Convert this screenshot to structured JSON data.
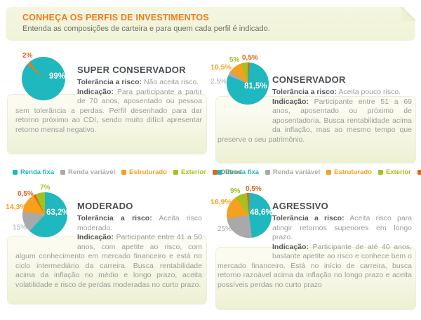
{
  "header": {
    "title": "CONHEÇA OS PERFIS DE INVESTIMENTOS",
    "subtitle": "Entenda as composições de carteira e para quem cada perfil é indicado."
  },
  "colors": {
    "renda_fixa": "#1EB8BE",
    "renda_variavel": "#A8A9AB",
    "estruturado": "#F5A01E",
    "exterior": "#A5C11E",
    "outros": "#E2651B",
    "header_title": "#F07B21"
  },
  "legend": {
    "items": [
      {
        "label": "Renda fixa",
        "color": "#1EB8BE"
      },
      {
        "label": "Renda variável",
        "color": "#A8A9AB"
      },
      {
        "label": "Estruturado",
        "color": "#F5A01E"
      },
      {
        "label": "Exterior",
        "color": "#A5C11E"
      },
      {
        "label": "Outros",
        "color": "#E2651B"
      }
    ]
  },
  "profiles": [
    {
      "name": "SUPER CONSERVADOR",
      "tolerance_label": "Tolerância a risco:",
      "tolerance": "Não aceita risco.",
      "indication_label": "Indicação:",
      "indication": "Para participante a partir de 70 anos, aposentado ou pessoa sem tolerância a perdas. Perfil desenhado para dar retorno próximo ao CDI, sendo muito difícil apresentar retorno mensal negativo."
    },
    {
      "name": "CONSERVADOR",
      "tolerance_label": "Tolerância a risco:",
      "tolerance": "Aceita pouco risco.",
      "indication_label": "Indicação:",
      "indication": "Participante entre 51 a 69 anos, aposentado ou próximo de aposentadoria. Busca rentabilidade acima da inflação, mas ao mesmo tempo que preserve o seu patrimônio."
    },
    {
      "name": "MODERADO",
      "tolerance_label": "Tolerância a risco:",
      "tolerance": "Aceita risco moderado.",
      "indication_label": "Indicação:",
      "indication": "Participante entre 41 a 50 anos, com apetite ao risco, com algum conhecimento em mercado financeiro e está no ciclo intermediário da carreira. Busca rentabilidade acima da inflação no médio e longo prazo, aceita volatilidade e risco de perdas moderadas no curto prazo."
    },
    {
      "name": "AGRESSIVO",
      "tolerance_label": "Tolerância a risco:",
      "tolerance": "Aceita risco para atingir retornos superiores em longo prazo.",
      "indication_label": "Indicação:",
      "indication": "Participante de até 40 anos, bastante apetite ao risco e conhece bem o mercado financeiro. Está no início de carreira, busca retorno razoável acima da inflação no longo prazo e aceita possíveis perdas no curto prazo"
    }
  ],
  "chart_data": [
    {
      "type": "pie",
      "title": "SUPER CONSERVADOR",
      "labels": [
        "Renda fixa",
        "Outros"
      ],
      "values": [
        99,
        2
      ],
      "value_labels": [
        "99%",
        "2%"
      ],
      "colors": [
        "#1EB8BE",
        "#EE7910"
      ],
      "from_deg": 319.5,
      "sweeps_deg": [
        352.5,
        7.5
      ],
      "legend_position": "none"
    },
    {
      "type": "pie",
      "title": "CONSERVADOR",
      "labels": [
        "Outros",
        "Renda fixa",
        "Renda variável",
        "Estruturado",
        "Exterior"
      ],
      "values": [
        0.5,
        81.5,
        2.5,
        10.5,
        5
      ],
      "value_labels": [
        "0,5%",
        "81,5%",
        "2,5%",
        "10,5%",
        "5%"
      ],
      "colors": [
        "#E2651B",
        "#1EB8BE",
        "#A8A9AB",
        "#F5A01E",
        "#A5C11E"
      ],
      "from_deg": 0,
      "sweeps_deg": [
        6,
        286.2,
        12,
        37.8,
        18
      ],
      "legend_position": "bottom"
    },
    {
      "type": "pie",
      "title": "MODERADO",
      "labels": [
        "Renda fixa",
        "Renda variável",
        "Estruturado",
        "Outros",
        "Exterior"
      ],
      "values": [
        63.2,
        15,
        14.3,
        0.5,
        7
      ],
      "value_labels": [
        "63,2%",
        "15%",
        "14,3%",
        "0,5%",
        "7%"
      ],
      "colors": [
        "#1EB8BE",
        "#A8A9AB",
        "#F5A01E",
        "#E2651B",
        "#A5C11E"
      ],
      "from_deg": 0,
      "sweeps_deg": [
        223.3,
        54,
        51.5,
        6,
        25.2
      ],
      "legend_position": "top"
    },
    {
      "type": "pie",
      "title": "AGRESSIVO",
      "labels": [
        "Renda fixa",
        "Renda variável",
        "Estruturado",
        "Exterior",
        "Outros"
      ],
      "values": [
        48.6,
        25,
        16.9,
        9,
        0.5
      ],
      "value_labels": [
        "48,6%",
        "25%",
        "16,9%",
        "9%",
        "0,5%"
      ],
      "colors": [
        "#1EB8BE",
        "#A8A9AB",
        "#F5A01E",
        "#A5C11E",
        "#E2651B"
      ],
      "from_deg": 0,
      "sweeps_deg": [
        172.6,
        90,
        60.8,
        30.6,
        6
      ],
      "legend_position": "top"
    }
  ]
}
